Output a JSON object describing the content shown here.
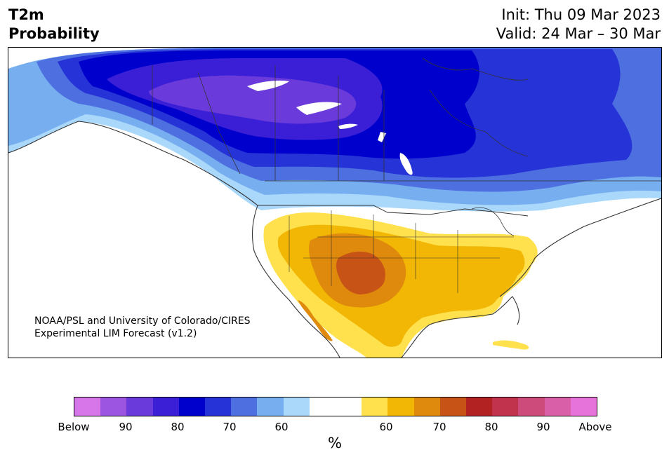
{
  "title": {
    "left_line1": "T2m",
    "left_line2": "Probability",
    "right_line1": "Init: Thu 09 Mar 2023",
    "right_line2": "Valid: 24 Mar – 30 Mar"
  },
  "credit": {
    "line1": "NOAA/PSL and University of Colorado/CIRES",
    "line2": "Experimental LIM Forecast (v1.2)"
  },
  "colorbar": {
    "colors": [
      "#d676e8",
      "#9b55e0",
      "#6a3adb",
      "#3a1fd6",
      "#0000cc",
      "#2633d6",
      "#4d6fe0",
      "#77aeef",
      "#aad8fb",
      "#ffffff",
      "#ffffff",
      "#ffe14d",
      "#f2b705",
      "#df8a0c",
      "#c75416",
      "#b22222",
      "#c1334d",
      "#cc4b7a",
      "#d95fa8",
      "#e673d9"
    ],
    "labels": [
      "Below",
      "90",
      "80",
      "70",
      "60",
      "60",
      "70",
      "80",
      "90",
      "Above"
    ],
    "unit": "%"
  },
  "colors": {
    "land": "#ffffff",
    "ocean": "#ffffff",
    "borders": "#333333"
  }
}
